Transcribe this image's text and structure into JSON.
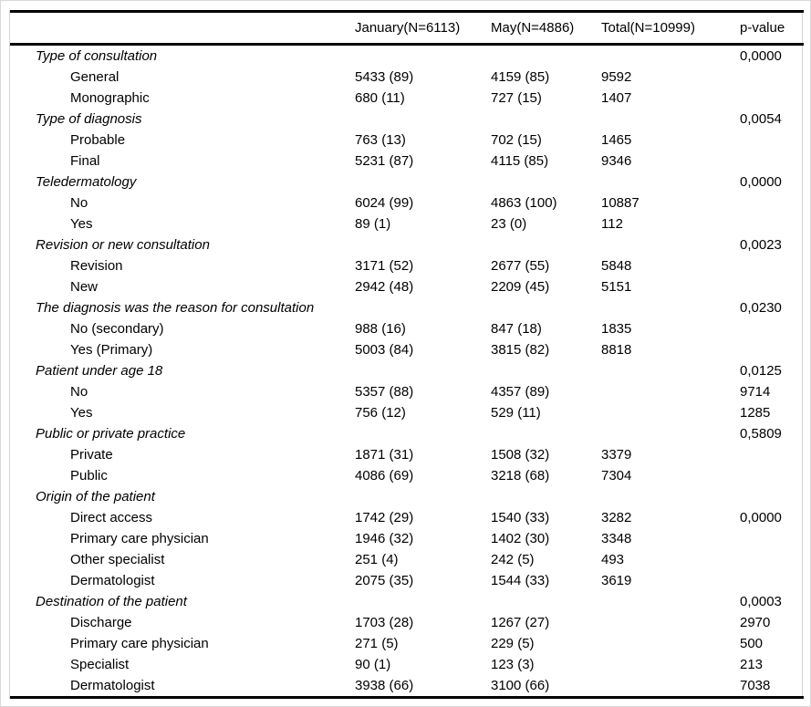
{
  "table": {
    "columns": [
      "",
      "January(N=6113)",
      "May(N=4886)",
      "Total(N=10999)",
      "p-value"
    ],
    "sections": [
      {
        "label": "Type of consultation",
        "p": "0,0000",
        "rows": [
          {
            "label": "General",
            "jan": "5433 (89)",
            "may": "4159 (85)",
            "total": "9592",
            "p": ""
          },
          {
            "label": "Monographic",
            "jan": "680 (11)",
            "may": "727 (15)",
            "total": "1407",
            "p": ""
          }
        ]
      },
      {
        "label": "Type of diagnosis",
        "p": "0,0054",
        "rows": [
          {
            "label": "Probable",
            "jan": "763 (13)",
            "may": "702 (15)",
            "total": "1465",
            "p": ""
          },
          {
            "label": "Final",
            "jan": "5231 (87)",
            "may": "4115 (85)",
            "total": "9346",
            "p": ""
          }
        ]
      },
      {
        "label": "Teledermatology",
        "p": "0,0000",
        "rows": [
          {
            "label": "No",
            "jan": "6024 (99)",
            "may": "4863 (100)",
            "total": "10887",
            "p": ""
          },
          {
            "label": "Yes",
            "jan": "89 (1)",
            "may": "23 (0)",
            "total": "112",
            "p": ""
          }
        ]
      },
      {
        "label": "Revision or new consultation",
        "p": "0,0023",
        "rows": [
          {
            "label": "Revision",
            "jan": "3171 (52)",
            "may": "2677 (55)",
            "total": "5848",
            "p": ""
          },
          {
            "label": "New",
            "jan": "2942 (48)",
            "may": "2209 (45)",
            "total": "5151",
            "p": ""
          }
        ]
      },
      {
        "label": "The diagnosis was the reason for consultation",
        "p": "0,0230",
        "rows": [
          {
            "label": "No (secondary)",
            "jan": "988 (16)",
            "may": "847 (18)",
            "total": "1835",
            "p": ""
          },
          {
            "label": "Yes (Primary)",
            "jan": "5003 (84)",
            "may": "3815 (82)",
            "total": "8818",
            "p": ""
          }
        ]
      },
      {
        "label": "Patient under age 18",
        "p": "0,0125",
        "rows": [
          {
            "label": "No",
            "jan": "5357 (88)",
            "may": "4357 (89)",
            "total": "",
            "p": "9714"
          },
          {
            "label": "Yes",
            "jan": "756 (12)",
            "may": "529 (11)",
            "total": "",
            "p": "1285"
          }
        ]
      },
      {
        "label": "Public or private practice",
        "p": "0,5809",
        "rows": [
          {
            "label": "Private",
            "jan": "1871 (31)",
            "may": "1508 (32)",
            "total": "3379",
            "p": ""
          },
          {
            "label": "Public",
            "jan": "4086 (69)",
            "may": "3218 (68)",
            "total": "7304",
            "p": ""
          }
        ]
      },
      {
        "label": "Origin of the patient",
        "p": "",
        "rows": [
          {
            "label": "Direct access",
            "jan": "1742 (29)",
            "may": "1540 (33)",
            "total": "3282",
            "p": "0,0000"
          },
          {
            "label": "Primary care physician",
            "jan": "1946 (32)",
            "may": "1402 (30)",
            "total": "3348",
            "p": ""
          },
          {
            "label": "Other specialist",
            "jan": "251 (4)",
            "may": "242 (5)",
            "total": "493",
            "p": ""
          },
          {
            "label": "Dermatologist",
            "jan": "2075 (35)",
            "may": "1544 (33)",
            "total": "3619",
            "p": ""
          }
        ]
      },
      {
        "label": "Destination of the patient",
        "p": "0,0003",
        "rows": [
          {
            "label": "Discharge",
            "jan": "1703 (28)",
            "may": "1267 (27)",
            "total": "",
            "p": "2970"
          },
          {
            "label": "Primary care physician",
            "jan": "271 (5)",
            "may": "229 (5)",
            "total": "",
            "p": "500"
          },
          {
            "label": "Specialist",
            "jan": "90 (1)",
            "may": "123 (3)",
            "total": "",
            "p": "213"
          },
          {
            "label": "Dermatologist",
            "jan": "3938 (66)",
            "may": "3100 (66)",
            "total": "",
            "p": "7038"
          }
        ]
      }
    ]
  }
}
